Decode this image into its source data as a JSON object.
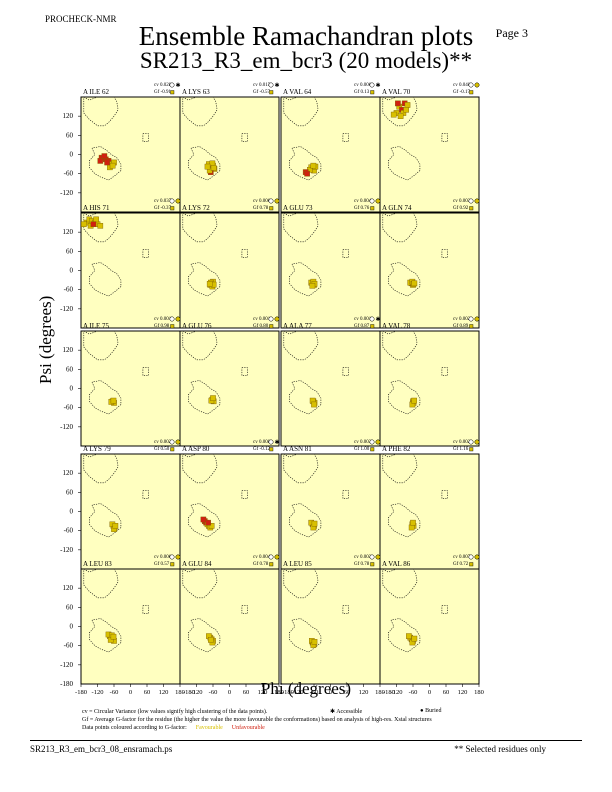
{
  "header": {
    "program": "PROCHECK-NMR",
    "page": "Page  3",
    "title": "Ensemble Ramachandran plots",
    "subtitle": "SR213_R3_em_bcr3 (20 models)**"
  },
  "footer": {
    "filename": "SR213_R3_em_bcr3_08_ensramach.ps",
    "note": "** Selected residues only"
  },
  "legend": {
    "cv_line": "cv = Circular Variance (low values signify high clustering of the data points).",
    "gf_line": "Gf = Average G-factor for the residue (the higher the value the more favourable the conformations) based on analysis of high-res. Xstal structures",
    "colour_line": "Data points coloured according to G-factor:",
    "favourable": "Favourable",
    "unfavourable": "Unfavourable",
    "accessible": "Accessible",
    "buried": "Buried"
  },
  "colors": {
    "panel_bg": "#ffffc0",
    "favourable": "#d8c000",
    "unfavourable": "#d02010",
    "allowed_region_line": "#000000"
  },
  "chart_data": {
    "type": "scatter",
    "xlabel": "Phi (degrees)",
    "ylabel": "Psi (degrees)",
    "xlim": [
      -180,
      180
    ],
    "ylim": [
      -180,
      180
    ],
    "xticks": [
      "-180",
      "-120",
      "-60",
      "0",
      "60",
      "120",
      "180"
    ],
    "yticks": [
      "120",
      "60",
      "0",
      "-60",
      "-120"
    ],
    "ytick_last": "-180",
    "xtick_between": "-180",
    "panels": [
      {
        "label": "A ILE 62",
        "cv": "cv 0.028",
        "gf": "Gf -0.91",
        "access": "accessible",
        "pts": [
          [
            -105,
            -10,
            "u"
          ],
          [
            -90,
            -15,
            "u"
          ],
          [
            -80,
            -20,
            "u"
          ],
          [
            -95,
            -5,
            "u"
          ],
          [
            -110,
            -20,
            "u"
          ],
          [
            -70,
            -30,
            "f"
          ],
          [
            -60,
            -25,
            "f"
          ],
          [
            -75,
            -40,
            "f"
          ],
          [
            -65,
            -35,
            "f"
          ],
          [
            -85,
            -25,
            "u"
          ]
        ]
      },
      {
        "label": "A LYS 63",
        "cv": "cv 0.015",
        "gf": "Gf -0.57",
        "access": "accessible",
        "pts": [
          [
            -65,
            -40,
            "f"
          ],
          [
            -70,
            -45,
            "f"
          ],
          [
            -60,
            -35,
            "f"
          ],
          [
            -75,
            -30,
            "f"
          ],
          [
            -55,
            -45,
            "f"
          ],
          [
            -68,
            -55,
            "u"
          ],
          [
            -62,
            -28,
            "f"
          ],
          [
            -72,
            -50,
            "f"
          ],
          [
            -58,
            -42,
            "f"
          ],
          [
            -80,
            -38,
            "f"
          ]
        ]
      },
      {
        "label": "A VAL 64",
        "cv": "cv 0.006",
        "gf": "Gf 0.13",
        "access": "accessible",
        "pts": [
          [
            -65,
            -45,
            "f"
          ],
          [
            -70,
            -40,
            "f"
          ],
          [
            -60,
            -50,
            "f"
          ],
          [
            -55,
            -38,
            "f"
          ],
          [
            -75,
            -48,
            "f"
          ],
          [
            -90,
            -55,
            "u"
          ],
          [
            -85,
            -60,
            "u"
          ],
          [
            -62,
            -35,
            "f"
          ]
        ]
      },
      {
        "label": "A VAL 70",
        "cv": "cv 0.040",
        "gf": "Gf -0.17",
        "access": "buried",
        "pts": [
          [
            -120,
            130,
            "f"
          ],
          [
            -110,
            150,
            "f"
          ],
          [
            -100,
            140,
            "u"
          ],
          [
            -90,
            160,
            "u"
          ],
          [
            -130,
            125,
            "f"
          ],
          [
            -80,
            155,
            "f"
          ],
          [
            -95,
            130,
            "f"
          ],
          [
            -115,
            160,
            "u"
          ],
          [
            -105,
            120,
            "f"
          ],
          [
            -85,
            140,
            "f"
          ]
        ]
      },
      {
        "label": "A HIS 71",
        "cv": "cv 0.037",
        "gf": "Gf -0.37",
        "access": "buried",
        "pts": [
          [
            -160,
            150,
            "f"
          ],
          [
            -150,
            160,
            "f"
          ],
          [
            -140,
            155,
            "f"
          ],
          [
            -130,
            150,
            "f"
          ],
          [
            -120,
            145,
            "f"
          ],
          [
            -110,
            140,
            "f"
          ],
          [
            -145,
            140,
            "f"
          ],
          [
            -125,
            160,
            "f"
          ],
          [
            -170,
            145,
            "f"
          ],
          [
            -135,
            145,
            "u"
          ]
        ]
      },
      {
        "label": "A LYS 72",
        "cv": "cv 0.006",
        "gf": "Gf 0.78",
        "access": "buried",
        "pts": [
          [
            -65,
            -40,
            "f"
          ],
          [
            -70,
            -45,
            "f"
          ],
          [
            -60,
            -35,
            "f"
          ],
          [
            -62,
            -50,
            "f"
          ],
          [
            -68,
            -38,
            "f"
          ],
          [
            -58,
            -44,
            "f"
          ],
          [
            -72,
            -42,
            "f"
          ]
        ]
      },
      {
        "label": "A GLU 73",
        "cv": "cv 0.004",
        "gf": "Gf 0.76",
        "access": "buried",
        "pts": [
          [
            -65,
            -40,
            "f"
          ],
          [
            -60,
            -45,
            "f"
          ],
          [
            -70,
            -38,
            "f"
          ],
          [
            -62,
            -35,
            "f"
          ],
          [
            -58,
            -42,
            "f"
          ],
          [
            -66,
            -48,
            "f"
          ]
        ]
      },
      {
        "label": "A GLN 74",
        "cv": "cv 0.003",
        "gf": "Gf 0.92",
        "access": "buried",
        "pts": [
          [
            -65,
            -40,
            "f"
          ],
          [
            -60,
            -45,
            "f"
          ],
          [
            -70,
            -38,
            "f"
          ],
          [
            -62,
            -35,
            "f"
          ],
          [
            -58,
            -42,
            "f"
          ],
          [
            -55,
            -40,
            "f"
          ]
        ]
      },
      {
        "label": "A ILE 75",
        "cv": "cv 0.001",
        "gf": "Gf 0.98",
        "access": "buried",
        "pts": [
          [
            -65,
            -40,
            "f"
          ],
          [
            -60,
            -45,
            "f"
          ],
          [
            -70,
            -42,
            "f"
          ],
          [
            -62,
            -38,
            "f"
          ]
        ]
      },
      {
        "label": "A GLU 76",
        "cv": "cv 0.001",
        "gf": "Gf 0.80",
        "access": "buried",
        "pts": [
          [
            -62,
            -35,
            "f"
          ],
          [
            -58,
            -40,
            "f"
          ],
          [
            -66,
            -38,
            "f"
          ],
          [
            -60,
            -30,
            "f"
          ]
        ]
      },
      {
        "label": "A ALA 77",
        "cv": "cv 0.001",
        "gf": "Gf 0.87",
        "access": "accessible",
        "pts": [
          [
            -62,
            -40,
            "f"
          ],
          [
            -58,
            -45,
            "f"
          ],
          [
            -65,
            -38,
            "f"
          ],
          [
            -60,
            -50,
            "f"
          ]
        ]
      },
      {
        "label": "A VAL 78",
        "cv": "cv 0.002",
        "gf": "Gf 0.89",
        "access": "buried",
        "pts": [
          [
            -60,
            -40,
            "f"
          ],
          [
            -58,
            -45,
            "f"
          ],
          [
            -62,
            -50,
            "f"
          ],
          [
            -56,
            -38,
            "f"
          ]
        ]
      },
      {
        "label": "A LYS 79",
        "cv": "cv 0.002",
        "gf": "Gf 0.50",
        "access": "buried",
        "pts": [
          [
            -62,
            -45,
            "f"
          ],
          [
            -58,
            -50,
            "f"
          ],
          [
            -66,
            -40,
            "f"
          ],
          [
            -60,
            -55,
            "f"
          ],
          [
            -55,
            -45,
            "f"
          ]
        ]
      },
      {
        "label": "A ASP 80",
        "cv": "cv 0.008",
        "gf": "Gf -0.12",
        "access": "accessible",
        "pts": [
          [
            -90,
            -30,
            "u"
          ],
          [
            -85,
            -35,
            "u"
          ],
          [
            -80,
            -40,
            "f"
          ],
          [
            -75,
            -45,
            "f"
          ],
          [
            -70,
            -50,
            "f"
          ],
          [
            -95,
            -25,
            "u"
          ],
          [
            -65,
            -45,
            "f"
          ],
          [
            -78,
            -35,
            "u"
          ]
        ]
      },
      {
        "label": "A ASN 81",
        "cv": "cv 0.003",
        "gf": "Gf 1.00",
        "access": "buried",
        "pts": [
          [
            -65,
            -40,
            "f"
          ],
          [
            -60,
            -45,
            "f"
          ],
          [
            -70,
            -35,
            "f"
          ],
          [
            -62,
            -50,
            "f"
          ],
          [
            -58,
            -38,
            "f"
          ]
        ]
      },
      {
        "label": "A PHE 82",
        "cv": "cv 0.002",
        "gf": "Gf 1.16",
        "access": "buried",
        "pts": [
          [
            -62,
            -40,
            "f"
          ],
          [
            -58,
            -45,
            "f"
          ],
          [
            -65,
            -50,
            "f"
          ],
          [
            -60,
            -35,
            "f"
          ]
        ]
      },
      {
        "label": "A LEU 83",
        "cv": "cv 0.006",
        "gf": "Gf 0.57",
        "access": "buried",
        "pts": [
          [
            -75,
            -30,
            "f"
          ],
          [
            -70,
            -35,
            "f"
          ],
          [
            -65,
            -40,
            "f"
          ],
          [
            -60,
            -45,
            "f"
          ],
          [
            -80,
            -25,
            "f"
          ],
          [
            -68,
            -28,
            "f"
          ],
          [
            -72,
            -42,
            "f"
          ],
          [
            -62,
            -32,
            "f"
          ]
        ]
      },
      {
        "label": "A GLU 84",
        "cv": "cv 0.004",
        "gf": "Gf 0.78",
        "access": "buried",
        "pts": [
          [
            -70,
            -35,
            "f"
          ],
          [
            -65,
            -40,
            "f"
          ],
          [
            -60,
            -45,
            "f"
          ],
          [
            -75,
            -30,
            "f"
          ],
          [
            -62,
            -50,
            "f"
          ],
          [
            -68,
            -42,
            "f"
          ]
        ]
      },
      {
        "label": "A LEU 85",
        "cv": "cv 0.003",
        "gf": "Gf 0.78",
        "access": "buried",
        "pts": [
          [
            -65,
            -50,
            "f"
          ],
          [
            -60,
            -55,
            "f"
          ],
          [
            -68,
            -45,
            "f"
          ],
          [
            -62,
            -58,
            "f"
          ],
          [
            -58,
            -48,
            "f"
          ]
        ]
      },
      {
        "label": "A VAL 86",
        "cv": "cv 0.007",
        "gf": "Gf 0.72",
        "access": "buried",
        "pts": [
          [
            -70,
            -35,
            "f"
          ],
          [
            -65,
            -40,
            "f"
          ],
          [
            -60,
            -45,
            "f"
          ],
          [
            -75,
            -30,
            "f"
          ],
          [
            -62,
            -50,
            "f"
          ],
          [
            -55,
            -38,
            "f"
          ]
        ]
      }
    ]
  }
}
